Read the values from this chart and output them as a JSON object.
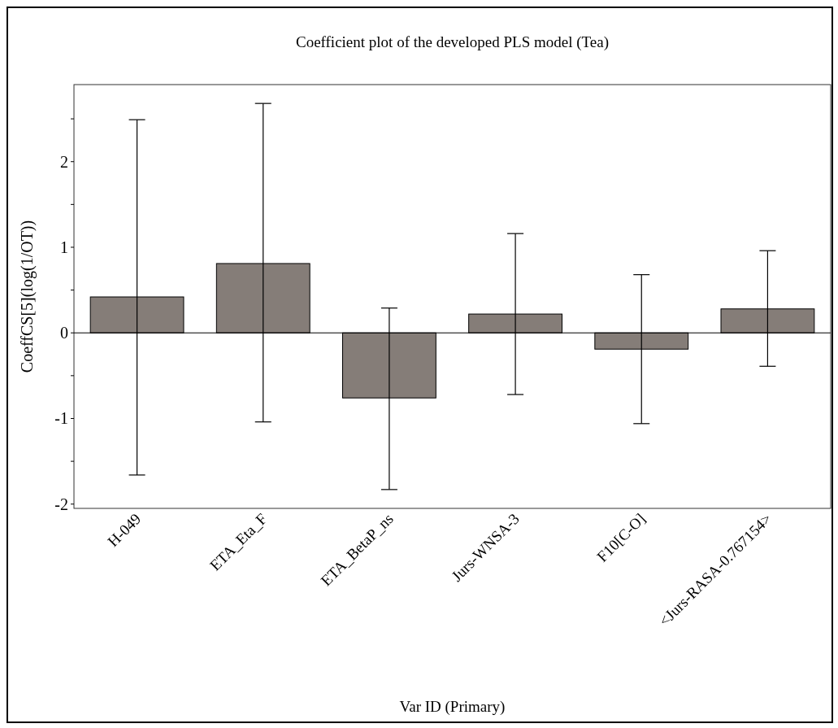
{
  "chart_data": {
    "type": "bar",
    "title": "Coefficient plot of the developed PLS model (Tea)",
    "xlabel": "Var ID (Primary)",
    "ylabel": "CoeffCS[5](log(1/OT))",
    "categories": [
      "H-049",
      "ETA_Eta_F",
      "ETA_BetaP_ns",
      "Jurs-WNSA-3",
      "F10[C-O]",
      "<Jurs-RASA-0.767154>"
    ],
    "values": [
      0.42,
      0.81,
      -0.76,
      0.22,
      -0.19,
      0.28
    ],
    "errors": [
      [
        -1.66,
        2.49
      ],
      [
        -1.04,
        2.68
      ],
      [
        -1.83,
        0.29
      ],
      [
        -0.72,
        1.16
      ],
      [
        -1.06,
        0.68
      ],
      [
        -0.39,
        0.96
      ]
    ],
    "color": "#857d78",
    "ylim": [
      -2.05,
      2.9
    ],
    "yticks": [
      -2,
      {
        "value": -1.5,
        "label": null
      },
      -1,
      {
        "value": -0.5,
        "label": null
      },
      0,
      {
        "value": 0.5,
        "label": null
      },
      1,
      {
        "value": 1.5,
        "label": null
      },
      2,
      {
        "value": 2.5,
        "label": null
      }
    ]
  }
}
